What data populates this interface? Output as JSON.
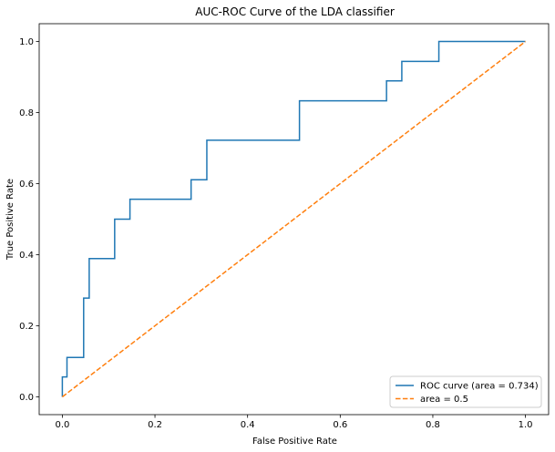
{
  "chart_data": {
    "type": "line",
    "title": "AUC-ROC Curve of the LDA classifier",
    "xlabel": "False Positive Rate",
    "ylabel": "True Positive Rate",
    "xlim": [
      -0.05,
      1.05
    ],
    "ylim": [
      -0.05,
      1.05
    ],
    "xticks": [
      0.0,
      0.2,
      0.4,
      0.6,
      0.8,
      1.0
    ],
    "yticks": [
      0.0,
      0.2,
      0.4,
      0.6,
      0.8,
      1.0
    ],
    "xtick_labels": [
      "0.0",
      "0.2",
      "0.4",
      "0.6",
      "0.8",
      "1.0"
    ],
    "ytick_labels": [
      "0.0",
      "0.2",
      "0.4",
      "0.6",
      "0.8",
      "1.0"
    ],
    "grid": false,
    "legend_position": "lower-right",
    "series": [
      {
        "name": "ROC curve (area = 0.734)",
        "color": "#1f77b4",
        "style": "solid",
        "x": [
          0.0,
          0.0,
          0.01,
          0.01,
          0.046,
          0.046,
          0.058,
          0.058,
          0.113,
          0.113,
          0.146,
          0.146,
          0.278,
          0.278,
          0.312,
          0.312,
          0.512,
          0.512,
          0.7,
          0.7,
          0.733,
          0.733,
          0.813,
          0.813,
          1.0
        ],
        "y": [
          0.0,
          0.056,
          0.056,
          0.111,
          0.111,
          0.278,
          0.278,
          0.389,
          0.389,
          0.5,
          0.5,
          0.556,
          0.556,
          0.611,
          0.611,
          0.722,
          0.722,
          0.833,
          0.833,
          0.889,
          0.889,
          0.944,
          0.944,
          1.0,
          1.0
        ]
      },
      {
        "name": "area = 0.5",
        "color": "#ff7f0e",
        "style": "dashed",
        "x": [
          0.0,
          1.0
        ],
        "y": [
          0.0,
          1.0
        ]
      }
    ]
  }
}
